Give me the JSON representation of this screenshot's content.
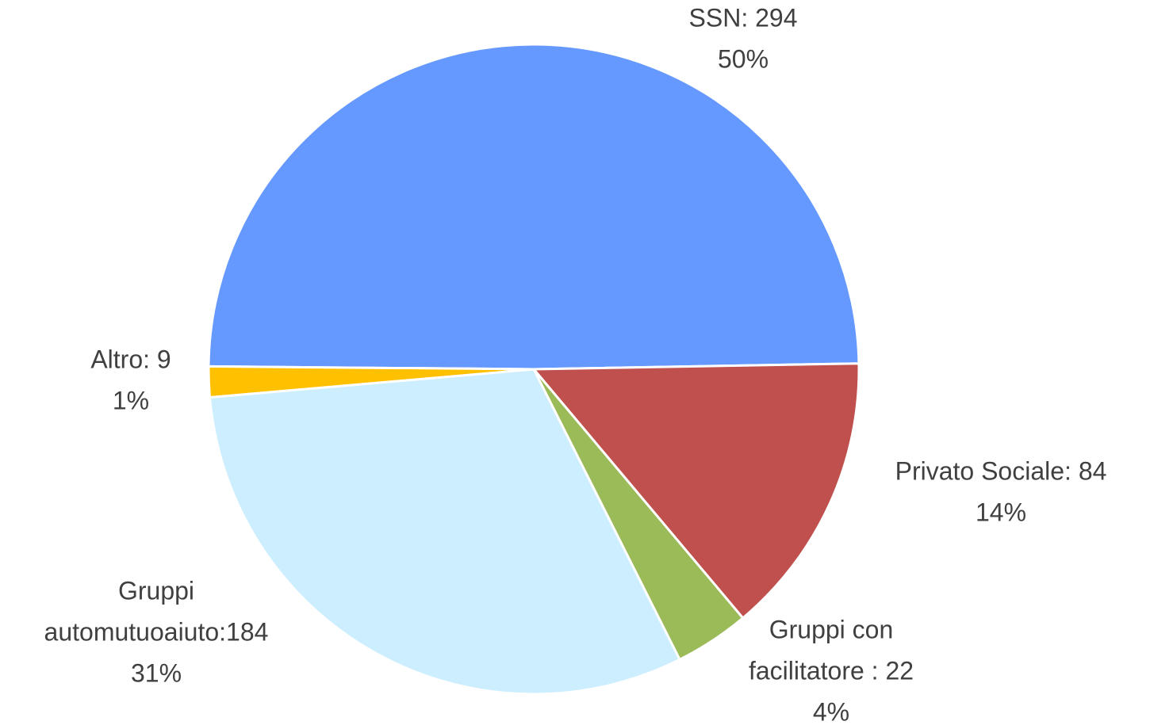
{
  "chart_data": {
    "type": "pie",
    "values": [
      294,
      84,
      22,
      184,
      9
    ],
    "value_labels": [
      [
        "SSN: 294"
      ],
      [
        "Privato Sociale: 84"
      ],
      [
        "Gruppi con",
        "facilitatore : 22"
      ],
      [
        "Gruppi",
        "automutuoaiuto:184"
      ],
      [
        "Altro: 9"
      ]
    ],
    "percent_labels": [
      "50%",
      "14%",
      "4%",
      "31%",
      "1%"
    ],
    "colors": [
      "#6699ff",
      "#c0504d",
      "#9bbb59",
      "#cceeff",
      "#ffc000"
    ]
  }
}
